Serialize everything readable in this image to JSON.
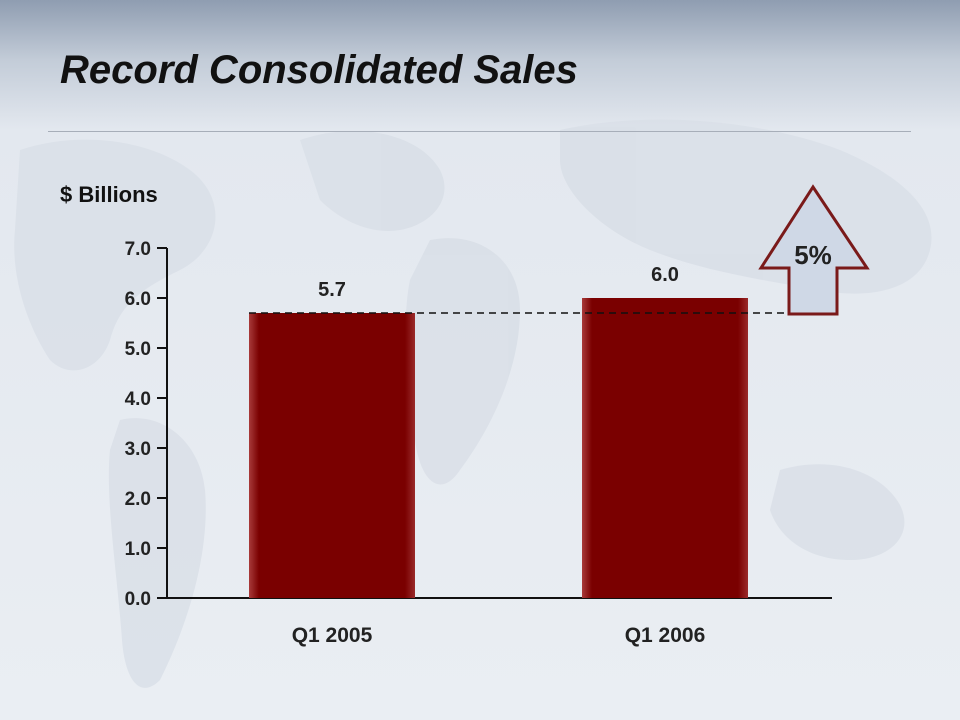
{
  "slide": {
    "title": "Record Consolidated Sales",
    "units_label": "$ Billions"
  },
  "colors": {
    "bar": "#7a0000",
    "arrow_fill": "#cfd8e6",
    "arrow_stroke": "#7a1a1a"
  },
  "growth_callout": {
    "label": "5%",
    "direction": "up"
  },
  "chart_data": {
    "type": "bar",
    "title": "Record Consolidated Sales",
    "ylabel": "$ Billions",
    "xlabel": "",
    "categories": [
      "Q1 2005",
      "Q1 2006"
    ],
    "values": [
      5.7,
      6.0
    ],
    "data_labels": [
      "5.7",
      "6.0"
    ],
    "ylim": [
      0,
      7
    ],
    "yticks": [
      0,
      1,
      2,
      3,
      4,
      5,
      6,
      7
    ],
    "ytick_labels": [
      "0.0",
      "1.0",
      "2.0",
      "3.0",
      "4.0",
      "5.0",
      "6.0",
      "7.0"
    ],
    "grid": false,
    "legend": "none",
    "reference_line": {
      "value": 5.7,
      "style": "dashed"
    },
    "annotation": "5%"
  }
}
